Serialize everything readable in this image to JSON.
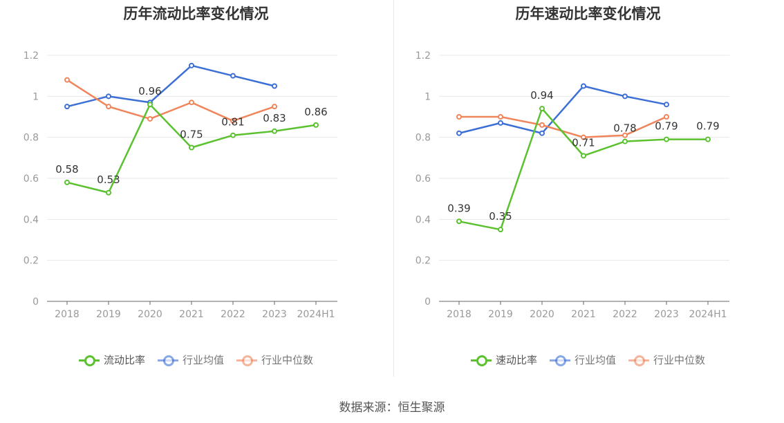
{
  "source_text": "数据来源：恒生聚源",
  "chart_data": [
    {
      "type": "line",
      "title": "历年流动比率变化情况",
      "categories": [
        "2018",
        "2019",
        "2020",
        "2021",
        "2022",
        "2023",
        "2024H1"
      ],
      "ylim": [
        0,
        1.2
      ],
      "yticks": [
        "0",
        "0.2",
        "0.4",
        "0.6",
        "0.8",
        "1",
        "1.2"
      ],
      "grid": true,
      "legend_position": "bottom",
      "series": [
        {
          "name": "流动比率",
          "color": "#5bc12f",
          "labeled": true,
          "values": [
            0.58,
            0.53,
            0.96,
            0.75,
            0.81,
            0.83,
            0.86
          ],
          "labels": [
            "0.58",
            "0.53",
            "0.96",
            "0.75",
            "0.81",
            "0.83",
            "0.86"
          ]
        },
        {
          "name": "行业均值",
          "color": "#3c6fd6",
          "labeled": false,
          "values": [
            0.95,
            1.0,
            0.97,
            1.15,
            1.1,
            1.05,
            null
          ]
        },
        {
          "name": "行业中位数",
          "color": "#f0845a",
          "labeled": false,
          "values": [
            1.08,
            0.95,
            0.89,
            0.97,
            0.88,
            0.95,
            null
          ]
        }
      ]
    },
    {
      "type": "line",
      "title": "历年速动比率变化情况",
      "categories": [
        "2018",
        "2019",
        "2020",
        "2021",
        "2022",
        "2023",
        "2024H1"
      ],
      "ylim": [
        0,
        1.2
      ],
      "yticks": [
        "0",
        "0.2",
        "0.4",
        "0.6",
        "0.8",
        "1",
        "1.2"
      ],
      "grid": true,
      "legend_position": "bottom",
      "series": [
        {
          "name": "速动比率",
          "color": "#5bc12f",
          "labeled": true,
          "values": [
            0.39,
            0.35,
            0.94,
            0.71,
            0.78,
            0.79,
            0.79
          ],
          "labels": [
            "0.39",
            "0.35",
            "0.94",
            "0.71",
            "0.78",
            "0.79",
            "0.79"
          ]
        },
        {
          "name": "行业均值",
          "color": "#3c6fd6",
          "labeled": false,
          "values": [
            0.82,
            0.87,
            0.82,
            1.05,
            1.0,
            0.96,
            null
          ]
        },
        {
          "name": "行业中位数",
          "color": "#f0845a",
          "labeled": false,
          "values": [
            0.9,
            0.9,
            0.86,
            0.8,
            0.81,
            0.9,
            null
          ]
        }
      ]
    }
  ]
}
